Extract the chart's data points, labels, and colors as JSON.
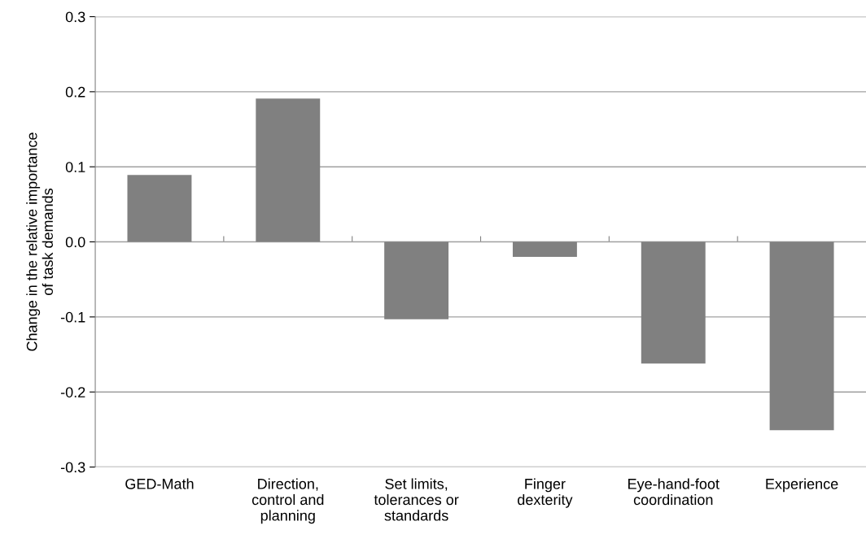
{
  "chart_data": {
    "type": "bar",
    "ylabel": "Change in the relative importance\nof task demands",
    "categories": [
      "GED-Math",
      "Direction,\ncontrol and\nplanning",
      "Set limits,\ntolerances or\nstandards",
      "Finger\ndexterity",
      "Eye-hand-foot\ncoordination",
      "Experience"
    ],
    "values": [
      0.089,
      0.191,
      -0.103,
      -0.02,
      -0.162,
      -0.251
    ],
    "color": "#808080",
    "ylim": [
      -0.3,
      0.3
    ],
    "yticks": [
      {
        "value": -0.3,
        "label": "-0.3"
      },
      {
        "value": -0.2,
        "label": "-0.2"
      },
      {
        "value": -0.1,
        "label": "-0.1"
      },
      {
        "value": 0,
        "label": "0.0"
      },
      {
        "value": 0.1,
        "label": "0.1"
      },
      {
        "value": 0.2,
        "label": "0.2"
      },
      {
        "value": 0.3,
        "label": "0.3"
      }
    ],
    "grid": "y",
    "legend": false
  }
}
